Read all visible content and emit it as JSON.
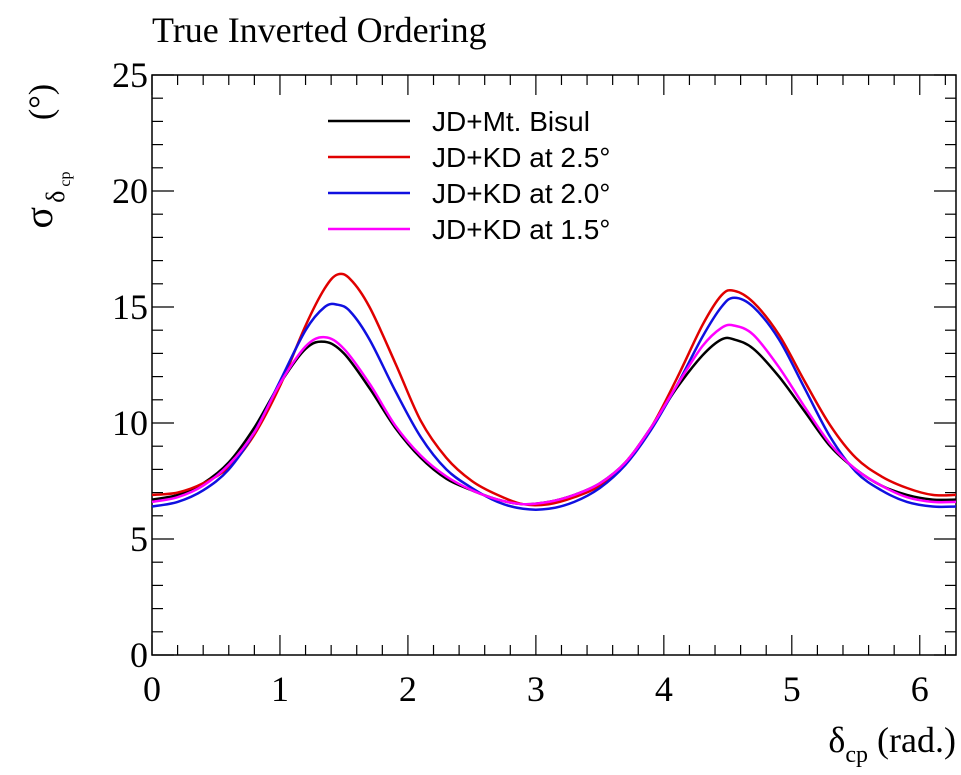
{
  "chart_data": {
    "type": "line",
    "title": "True Inverted Ordering",
    "xlabel": {
      "main": "δ",
      "sub": "cp",
      "suffix": " (rad.)"
    },
    "ylabel": {
      "main": "σ",
      "sub1": "δ",
      "sub2": "cp",
      "suffix": "(°)"
    },
    "xlim": [
      0,
      6.2832
    ],
    "ylim": [
      0,
      25
    ],
    "x_ticks": [
      0,
      1,
      2,
      3,
      4,
      5,
      6
    ],
    "x_tick_labels": [
      "0",
      "1",
      "2",
      "3",
      "4",
      "5",
      "6"
    ],
    "y_ticks": [
      0,
      5,
      10,
      15,
      20,
      25
    ],
    "y_tick_labels": [
      "0",
      "5",
      "10",
      "15",
      "20",
      "25"
    ],
    "grid": false,
    "legend_position": "top-center",
    "series": [
      {
        "name": "JD+Mt. Bisul",
        "color": "#000000",
        "points": [
          [
            0,
            6.7
          ],
          [
            0.2,
            6.9
          ],
          [
            0.4,
            7.4
          ],
          [
            0.6,
            8.3
          ],
          [
            0.8,
            9.8
          ],
          [
            1.0,
            11.7
          ],
          [
            1.2,
            13.2
          ],
          [
            1.35,
            13.5
          ],
          [
            1.5,
            13.0
          ],
          [
            1.7,
            11.5
          ],
          [
            1.9,
            9.8
          ],
          [
            2.1,
            8.5
          ],
          [
            2.3,
            7.6
          ],
          [
            2.5,
            7.1
          ],
          [
            2.7,
            6.7
          ],
          [
            2.9,
            6.5
          ],
          [
            3.1,
            6.6
          ],
          [
            3.3,
            6.9
          ],
          [
            3.5,
            7.4
          ],
          [
            3.7,
            8.3
          ],
          [
            3.9,
            9.8
          ],
          [
            4.1,
            11.5
          ],
          [
            4.3,
            12.9
          ],
          [
            4.45,
            13.6
          ],
          [
            4.55,
            13.6
          ],
          [
            4.7,
            13.2
          ],
          [
            4.9,
            12.0
          ],
          [
            5.1,
            10.5
          ],
          [
            5.3,
            9.0
          ],
          [
            5.5,
            8.0
          ],
          [
            5.7,
            7.3
          ],
          [
            5.9,
            6.9
          ],
          [
            6.1,
            6.7
          ],
          [
            6.2832,
            6.7
          ]
        ]
      },
      {
        "name": "JD+KD at 2.5°",
        "color": "#e00000",
        "points": [
          [
            0,
            6.9
          ],
          [
            0.2,
            7.0
          ],
          [
            0.4,
            7.4
          ],
          [
            0.6,
            8.1
          ],
          [
            0.8,
            9.5
          ],
          [
            1.0,
            11.6
          ],
          [
            1.2,
            14.2
          ],
          [
            1.35,
            15.8
          ],
          [
            1.45,
            16.4
          ],
          [
            1.55,
            16.2
          ],
          [
            1.7,
            15.0
          ],
          [
            1.9,
            12.6
          ],
          [
            2.1,
            10.1
          ],
          [
            2.3,
            8.5
          ],
          [
            2.5,
            7.5
          ],
          [
            2.7,
            6.9
          ],
          [
            2.9,
            6.5
          ],
          [
            3.1,
            6.5
          ],
          [
            3.3,
            6.8
          ],
          [
            3.5,
            7.3
          ],
          [
            3.7,
            8.3
          ],
          [
            3.9,
            9.8
          ],
          [
            4.1,
            11.9
          ],
          [
            4.3,
            14.2
          ],
          [
            4.45,
            15.5
          ],
          [
            4.55,
            15.7
          ],
          [
            4.7,
            15.2
          ],
          [
            4.9,
            13.8
          ],
          [
            5.1,
            11.8
          ],
          [
            5.3,
            9.9
          ],
          [
            5.5,
            8.5
          ],
          [
            5.7,
            7.7
          ],
          [
            5.9,
            7.2
          ],
          [
            6.1,
            6.9
          ],
          [
            6.2832,
            6.9
          ]
        ]
      },
      {
        "name": "JD+KD at 2.0°",
        "color": "#1010e0",
        "points": [
          [
            0,
            6.4
          ],
          [
            0.2,
            6.6
          ],
          [
            0.4,
            7.1
          ],
          [
            0.6,
            8.0
          ],
          [
            0.8,
            9.6
          ],
          [
            1.0,
            11.8
          ],
          [
            1.2,
            14.0
          ],
          [
            1.35,
            15.0
          ],
          [
            1.45,
            15.1
          ],
          [
            1.55,
            14.8
          ],
          [
            1.7,
            13.6
          ],
          [
            1.9,
            11.4
          ],
          [
            2.1,
            9.4
          ],
          [
            2.3,
            8.0
          ],
          [
            2.5,
            7.2
          ],
          [
            2.7,
            6.6
          ],
          [
            2.9,
            6.3
          ],
          [
            3.1,
            6.3
          ],
          [
            3.3,
            6.6
          ],
          [
            3.5,
            7.2
          ],
          [
            3.7,
            8.2
          ],
          [
            3.9,
            9.7
          ],
          [
            4.1,
            11.6
          ],
          [
            4.3,
            13.7
          ],
          [
            4.45,
            15.0
          ],
          [
            4.55,
            15.4
          ],
          [
            4.7,
            15.0
          ],
          [
            4.9,
            13.6
          ],
          [
            5.1,
            11.5
          ],
          [
            5.3,
            9.4
          ],
          [
            5.5,
            7.9
          ],
          [
            5.7,
            7.1
          ],
          [
            5.9,
            6.6
          ],
          [
            6.1,
            6.4
          ],
          [
            6.2832,
            6.4
          ]
        ]
      },
      {
        "name": "JD+KD at 1.5°",
        "color": "#ff00ff",
        "points": [
          [
            0,
            6.6
          ],
          [
            0.2,
            6.8
          ],
          [
            0.4,
            7.3
          ],
          [
            0.6,
            8.2
          ],
          [
            0.8,
            9.6
          ],
          [
            1.0,
            11.7
          ],
          [
            1.2,
            13.3
          ],
          [
            1.35,
            13.7
          ],
          [
            1.5,
            13.2
          ],
          [
            1.7,
            11.7
          ],
          [
            1.9,
            9.9
          ],
          [
            2.1,
            8.6
          ],
          [
            2.3,
            7.7
          ],
          [
            2.5,
            7.1
          ],
          [
            2.7,
            6.7
          ],
          [
            2.9,
            6.5
          ],
          [
            3.1,
            6.6
          ],
          [
            3.3,
            6.9
          ],
          [
            3.5,
            7.4
          ],
          [
            3.7,
            8.3
          ],
          [
            3.9,
            9.8
          ],
          [
            4.1,
            11.6
          ],
          [
            4.3,
            13.3
          ],
          [
            4.45,
            14.1
          ],
          [
            4.55,
            14.2
          ],
          [
            4.7,
            13.8
          ],
          [
            4.9,
            12.4
          ],
          [
            5.1,
            10.7
          ],
          [
            5.3,
            9.1
          ],
          [
            5.5,
            8.0
          ],
          [
            5.7,
            7.3
          ],
          [
            5.9,
            6.8
          ],
          [
            6.1,
            6.6
          ],
          [
            6.2832,
            6.6
          ]
        ]
      }
    ]
  }
}
